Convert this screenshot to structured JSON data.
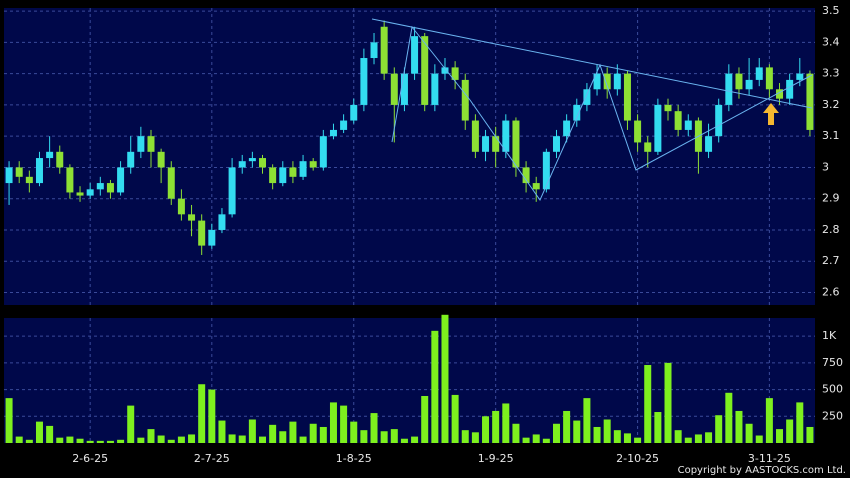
{
  "chart_data": {
    "type": "candlestick",
    "categories": [
      null,
      null,
      null,
      null,
      null,
      null,
      null,
      null,
      "2-6-25",
      null,
      null,
      null,
      null,
      null,
      null,
      null,
      null,
      null,
      null,
      null,
      "2-7-25",
      null,
      null,
      null,
      null,
      null,
      null,
      null,
      null,
      null,
      null,
      null,
      null,
      null,
      "1-8-25",
      null,
      null,
      null,
      null,
      null,
      null,
      null,
      null,
      null,
      null,
      null,
      null,
      null,
      "1-9-25",
      null,
      null,
      null,
      null,
      null,
      null,
      null,
      null,
      null,
      null,
      null,
      null,
      null,
      "2-10-25",
      null,
      null,
      null,
      null,
      null,
      null,
      null,
      null,
      null,
      null,
      null,
      null,
      "3-11-25",
      null,
      null,
      null,
      null
    ],
    "open": [
      2.95,
      3.0,
      2.97,
      2.95,
      3.03,
      3.05,
      3.0,
      2.92,
      2.91,
      2.93,
      2.95,
      2.92,
      3.0,
      3.05,
      3.1,
      3.05,
      3.0,
      2.9,
      2.85,
      2.83,
      2.75,
      2.8,
      2.85,
      3.0,
      3.02,
      3.03,
      3.0,
      2.95,
      3.0,
      2.97,
      3.02,
      3.0,
      3.1,
      3.12,
      3.15,
      3.2,
      3.35,
      3.45,
      3.3,
      3.2,
      3.3,
      3.42,
      3.2,
      3.3,
      3.32,
      3.28,
      3.15,
      3.05,
      3.1,
      3.05,
      3.15,
      3.0,
      2.95,
      2.93,
      3.05,
      3.1,
      3.15,
      3.2,
      3.25,
      3.3,
      3.25,
      3.3,
      3.15,
      3.08,
      3.05,
      3.2,
      3.18,
      3.12,
      3.15,
      3.05,
      3.1,
      3.2,
      3.3,
      3.25,
      3.28,
      3.32,
      3.25,
      3.22,
      3.28,
      3.3
    ],
    "high": [
      3.02,
      3.02,
      2.99,
      3.05,
      3.1,
      3.07,
      3.01,
      2.94,
      2.95,
      2.97,
      2.96,
      3.02,
      3.1,
      3.13,
      3.12,
      3.06,
      3.02,
      2.93,
      2.88,
      2.85,
      2.82,
      2.87,
      3.03,
      3.04,
      3.05,
      3.04,
      3.01,
      3.02,
      3.02,
      3.04,
      3.03,
      3.12,
      3.14,
      3.17,
      3.22,
      3.38,
      3.43,
      3.47,
      3.32,
      3.32,
      3.45,
      3.43,
      3.33,
      3.35,
      3.34,
      3.3,
      3.17,
      3.12,
      3.13,
      3.17,
      3.16,
      3.02,
      2.97,
      3.06,
      3.12,
      3.17,
      3.22,
      3.27,
      3.33,
      3.32,
      3.33,
      3.31,
      3.17,
      3.1,
      3.22,
      3.22,
      3.2,
      3.17,
      3.16,
      3.14,
      3.22,
      3.33,
      3.32,
      3.35,
      3.35,
      3.33,
      3.27,
      3.3,
      3.35,
      3.31
    ],
    "low": [
      2.88,
      2.95,
      2.92,
      2.94,
      3.0,
      2.98,
      2.9,
      2.89,
      2.9,
      2.91,
      2.9,
      2.91,
      2.98,
      3.03,
      3.0,
      2.95,
      2.88,
      2.83,
      2.78,
      2.72,
      2.74,
      2.79,
      2.84,
      2.98,
      3.0,
      2.98,
      2.93,
      2.94,
      2.95,
      2.96,
      2.99,
      2.99,
      3.09,
      3.11,
      3.14,
      3.18,
      3.33,
      3.28,
      3.08,
      3.18,
      3.28,
      3.18,
      3.18,
      3.28,
      3.25,
      3.12,
      3.03,
      3.02,
      3.0,
      3.03,
      2.97,
      2.92,
      2.89,
      2.92,
      3.03,
      3.08,
      3.13,
      3.18,
      3.23,
      3.22,
      3.23,
      3.12,
      3.05,
      3.0,
      3.04,
      3.15,
      3.1,
      3.1,
      2.98,
      3.03,
      3.08,
      3.18,
      3.22,
      3.23,
      3.26,
      3.22,
      3.2,
      3.2,
      3.26,
      3.1
    ],
    "close": [
      3.0,
      2.97,
      2.95,
      3.03,
      3.05,
      3.0,
      2.92,
      2.91,
      2.93,
      2.95,
      2.92,
      3.0,
      3.05,
      3.1,
      3.05,
      3.0,
      2.9,
      2.85,
      2.83,
      2.75,
      2.8,
      2.85,
      3.0,
      3.02,
      3.03,
      3.0,
      2.95,
      3.0,
      2.97,
      3.02,
      3.0,
      3.1,
      3.12,
      3.15,
      3.2,
      3.35,
      3.4,
      3.3,
      3.2,
      3.3,
      3.42,
      3.2,
      3.3,
      3.32,
      3.28,
      3.15,
      3.05,
      3.1,
      3.05,
      3.15,
      3.0,
      2.95,
      2.93,
      3.05,
      3.1,
      3.15,
      3.2,
      3.25,
      3.3,
      3.25,
      3.3,
      3.15,
      3.08,
      3.05,
      3.2,
      3.18,
      3.12,
      3.15,
      3.05,
      3.1,
      3.2,
      3.3,
      3.25,
      3.28,
      3.32,
      3.25,
      3.22,
      3.28,
      3.3,
      3.12
    ],
    "volume": [
      420,
      60,
      30,
      200,
      160,
      50,
      60,
      40,
      20,
      20,
      20,
      30,
      350,
      50,
      130,
      70,
      30,
      60,
      80,
      550,
      500,
      210,
      80,
      70,
      220,
      60,
      170,
      110,
      200,
      60,
      180,
      150,
      380,
      350,
      200,
      120,
      280,
      110,
      130,
      40,
      60,
      440,
      1050,
      1200,
      450,
      120,
      100,
      250,
      300,
      370,
      180,
      50,
      80,
      40,
      180,
      300,
      210,
      420,
      150,
      220,
      120,
      90,
      50,
      730,
      290,
      750,
      120,
      50,
      80,
      100,
      260,
      470,
      300,
      180,
      70,
      420,
      130,
      220,
      380,
      150
    ],
    "up_color": "#33dcf0",
    "down_color": "#8ee034",
    "volume_color": "#7ef01e",
    "ylim": [
      2.56,
      3.51
    ],
    "yticks": [
      2.6,
      2.7,
      2.8,
      2.9,
      3,
      3.1,
      3.2,
      3.3,
      3.4,
      3.5
    ],
    "volume_ylim": [
      0,
      1170
    ],
    "volume_yticks": [
      250,
      500,
      750,
      {
        "value": 1000,
        "label": "1K"
      }
    ],
    "grid": true,
    "credit": "Copyright by AASTOCKS.com Ltd."
  }
}
